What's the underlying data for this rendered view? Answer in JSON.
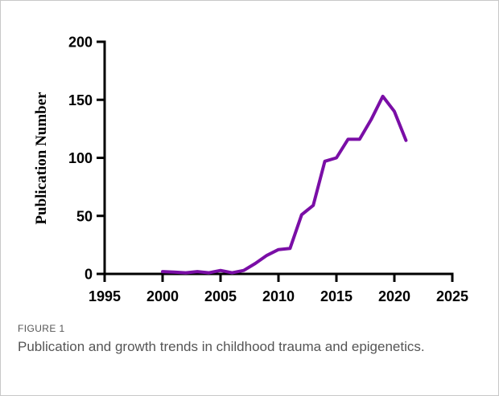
{
  "figure": {
    "label": "FIGURE 1",
    "caption": "Publication and growth trends in childhood trauma and epigenetics."
  },
  "chart_data": {
    "type": "line",
    "title": "",
    "xlabel": "",
    "ylabel": "Publication Number",
    "xlim": [
      1995,
      2025
    ],
    "ylim": [
      0,
      200
    ],
    "xticks": [
      1995,
      2000,
      2005,
      2010,
      2015,
      2020,
      2025
    ],
    "yticks": [
      0,
      50,
      100,
      150,
      200
    ],
    "grid": false,
    "line_color": "#7a0ea6",
    "series": [
      {
        "x": [
          2000,
          2001,
          2002,
          2003,
          2004,
          2005,
          2006,
          2007,
          2008,
          2009,
          2010,
          2011,
          2012,
          2013,
          2014,
          2015,
          2016,
          2017,
          2018,
          2019,
          2020,
          2021
        ],
        "y": [
          2,
          1.5,
          1,
          2,
          1,
          3,
          1,
          3,
          9,
          16,
          21,
          22,
          51,
          59,
          97,
          100,
          116,
          116,
          133,
          153,
          140,
          115
        ]
      }
    ]
  }
}
